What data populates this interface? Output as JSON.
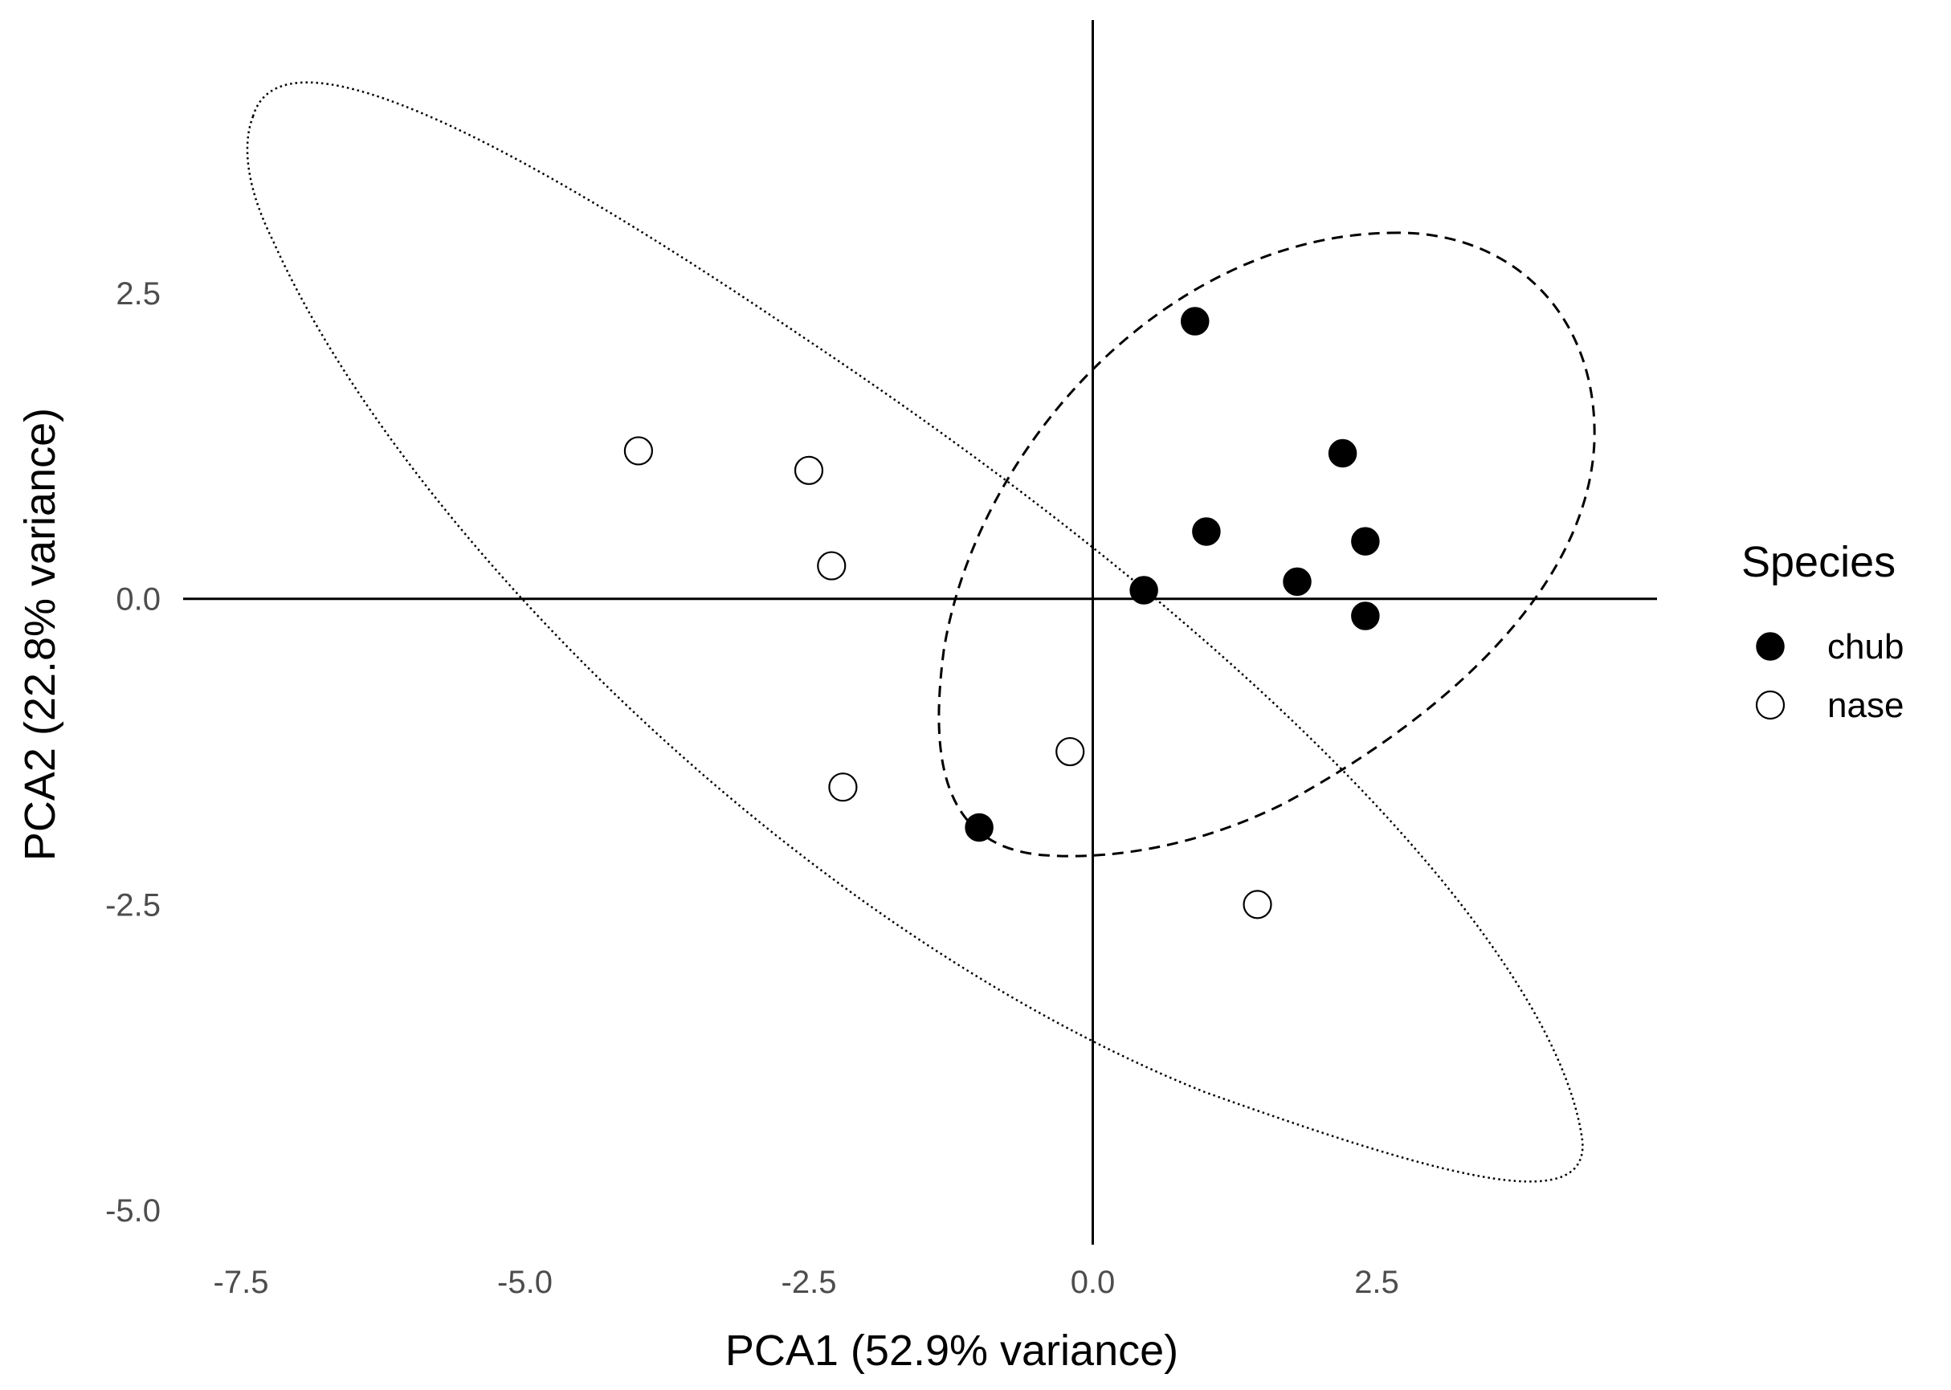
{
  "chart_data": {
    "type": "scatter",
    "title": "",
    "xlabel": "PCA1 (52.9% variance)",
    "ylabel": "PCA2 (22.8% variance)",
    "xlim": [
      -8.2,
      4.6
    ],
    "ylim": [
      -5.3,
      4.6
    ],
    "x_ticks": [
      -7.5,
      -5.0,
      -2.5,
      0.0,
      2.5
    ],
    "x_tick_labels": [
      "-7.5",
      "-5.0",
      "-2.5",
      "0.0",
      "2.5"
    ],
    "y_ticks": [
      -5.0,
      -2.5,
      0.0,
      2.5
    ],
    "y_tick_labels": [
      "-5.0",
      "-2.5",
      "0.0",
      "2.5"
    ],
    "grid": false,
    "reference_lines": {
      "x": 0,
      "y": 0
    },
    "legend": {
      "title": "Species",
      "position": "right",
      "entries": [
        {
          "label": "chub",
          "marker": "filled-circle"
        },
        {
          "label": "nase",
          "marker": "open-circle"
        }
      ]
    },
    "series": [
      {
        "name": "chub",
        "marker": "filled-circle",
        "color": "#000000",
        "ellipse": "dashed",
        "points": [
          {
            "x": 0.9,
            "y": 2.27
          },
          {
            "x": 2.2,
            "y": 1.19
          },
          {
            "x": 1.0,
            "y": 0.55
          },
          {
            "x": 2.4,
            "y": 0.47
          },
          {
            "x": 1.8,
            "y": 0.14
          },
          {
            "x": 0.45,
            "y": 0.07
          },
          {
            "x": 2.4,
            "y": -0.14
          },
          {
            "x": -1.0,
            "y": -1.87
          }
        ]
      },
      {
        "name": "nase",
        "marker": "open-circle",
        "color": "#000000",
        "ellipse": "dotted",
        "points": [
          {
            "x": -4.0,
            "y": 1.21
          },
          {
            "x": -2.5,
            "y": 1.05
          },
          {
            "x": -2.3,
            "y": 0.27
          },
          {
            "x": -0.2,
            "y": -1.25
          },
          {
            "x": -2.2,
            "y": -1.54
          },
          {
            "x": 1.45,
            "y": -2.5
          }
        ]
      }
    ]
  }
}
